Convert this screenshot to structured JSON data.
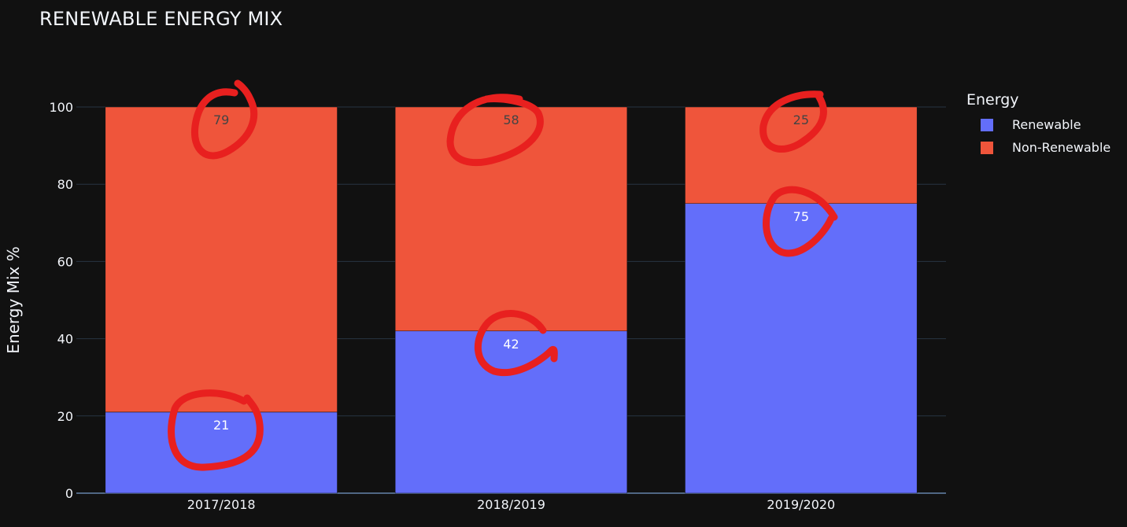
{
  "colors": {
    "background": "#111111",
    "grid": "#283442",
    "axis_text": "#f2f5fa",
    "renewable": "#636efa",
    "non_renewable": "#ef553b",
    "annotation": "#e8201f"
  },
  "chart_data": {
    "type": "bar",
    "barmode": "stack",
    "title": "RENEWABLE ENERGY MIX",
    "xlabel": "",
    "ylabel": "Energy Mix %",
    "ylim": [
      0,
      100
    ],
    "yticks": [
      0,
      20,
      40,
      60,
      80,
      100
    ],
    "categories": [
      "2017/2018",
      "2018/2019",
      "2019/2020"
    ],
    "legend_title": "Energy",
    "legend_position": "top-right outside",
    "grid": true,
    "series": [
      {
        "name": "Renewable",
        "color": "#636efa",
        "values": [
          21,
          42,
          75
        ]
      },
      {
        "name": "Non-Renewable",
        "color": "#ef553b",
        "values": [
          79,
          58,
          25
        ]
      }
    ]
  }
}
